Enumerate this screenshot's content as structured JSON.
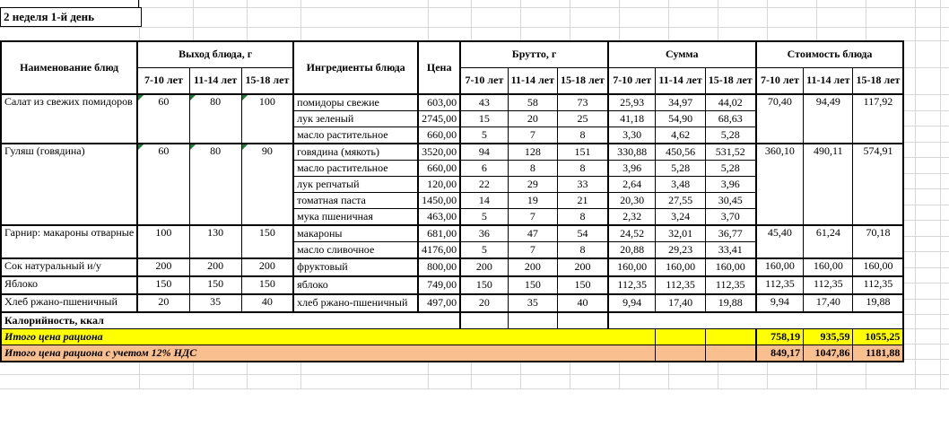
{
  "sheet": {
    "week_label": "2 неделя 1-й день"
  },
  "table": {
    "headers": {
      "dish": "Наименование блюд",
      "output": "Выход блюда, г",
      "ingredients": "Ингредиенты блюда",
      "price": "Цена",
      "brutto": "Брутто, г",
      "sum": "Сумма",
      "cost": "Стоимость блюда",
      "age_groups": [
        "7-10 лет",
        "11-14 лет",
        "15-18 лет"
      ]
    },
    "dishes": [
      {
        "name": "Салат из свежих помидоров",
        "output": [
          "60",
          "80",
          "100"
        ],
        "output_flagged": true,
        "cost": [
          "70,40",
          "94,49",
          "117,92"
        ],
        "ingredients": [
          {
            "name": "помидоры свежие",
            "price": "603,00",
            "brutto": [
              "43",
              "58",
              "73"
            ],
            "sum": [
              "25,93",
              "34,97",
              "44,02"
            ]
          },
          {
            "name": "лук зеленый",
            "price": "2745,00",
            "brutto": [
              "15",
              "20",
              "25"
            ],
            "sum": [
              "41,18",
              "54,90",
              "68,63"
            ]
          },
          {
            "name": "масло растительное",
            "price": "660,00",
            "brutto": [
              "5",
              "7",
              "8"
            ],
            "sum": [
              "3,30",
              "4,62",
              "5,28"
            ]
          }
        ]
      },
      {
        "name": "Гуляш (говядина)",
        "output": [
          "60",
          "80",
          "90"
        ],
        "output_flagged": true,
        "cost": [
          "360,10",
          "490,11",
          "574,91"
        ],
        "ingredients": [
          {
            "name": "говядина (мякоть)",
            "price": "3520,00",
            "brutto": [
              "94",
              "128",
              "151"
            ],
            "sum": [
              "330,88",
              "450,56",
              "531,52"
            ]
          },
          {
            "name": "масло растительное",
            "price": "660,00",
            "brutto": [
              "6",
              "8",
              "8"
            ],
            "sum": [
              "3,96",
              "5,28",
              "5,28"
            ]
          },
          {
            "name": "лук репчатый",
            "price": "120,00",
            "brutto": [
              "22",
              "29",
              "33"
            ],
            "sum": [
              "2,64",
              "3,48",
              "3,96"
            ]
          },
          {
            "name": "томатная паста",
            "price": "1450,00",
            "brutto": [
              "14",
              "19",
              "21"
            ],
            "sum": [
              "20,30",
              "27,55",
              "30,45"
            ]
          },
          {
            "name": "мука пшеничная",
            "price": "463,00",
            "brutto": [
              "5",
              "7",
              "8"
            ],
            "sum": [
              "2,32",
              "3,24",
              "3,70"
            ]
          }
        ]
      },
      {
        "name": "Гарнир: макароны отварные",
        "output": [
          "100",
          "130",
          "150"
        ],
        "output_flagged": false,
        "cost": [
          "45,40",
          "61,24",
          "70,18"
        ],
        "ingredients": [
          {
            "name": "макароны",
            "price": "681,00",
            "brutto": [
              "36",
              "47",
              "54"
            ],
            "sum": [
              "24,52",
              "32,01",
              "36,77"
            ]
          },
          {
            "name": "масло сливочное",
            "price": "4176,00",
            "brutto": [
              "5",
              "7",
              "8"
            ],
            "sum": [
              "20,88",
              "29,23",
              "33,41"
            ]
          }
        ]
      },
      {
        "name": "Сок натуральный и/у",
        "output": [
          "200",
          "200",
          "200"
        ],
        "output_flagged": false,
        "cost": [
          "160,00",
          "160,00",
          "160,00"
        ],
        "ingredients": [
          {
            "name": "фруктовый",
            "price": "800,00",
            "brutto": [
              "200",
              "200",
              "200"
            ],
            "sum": [
              "160,00",
              "160,00",
              "160,00"
            ]
          }
        ]
      },
      {
        "name": "Яблоко",
        "output": [
          "150",
          "150",
          "150"
        ],
        "output_flagged": false,
        "cost": [
          "112,35",
          "112,35",
          "112,35"
        ],
        "ingredients": [
          {
            "name": "яблоко",
            "price": "749,00",
            "brutto": [
              "150",
              "150",
              "150"
            ],
            "sum": [
              "112,35",
              "112,35",
              "112,35"
            ]
          }
        ]
      },
      {
        "name": "Хлеб ржано-пшеничный",
        "output": [
          "20",
          "35",
          "40"
        ],
        "output_flagged": false,
        "cost": [
          "9,94",
          "17,40",
          "19,88"
        ],
        "ingredients": [
          {
            "name": "хлеб ржано-пшеничный",
            "price": "497,00",
            "brutto": [
              "20",
              "35",
              "40"
            ],
            "sum": [
              "9,94",
              "17,40",
              "19,88"
            ]
          }
        ]
      }
    ],
    "footer": {
      "calories_label": "Калорийность, ккал",
      "total_label": "Итого цена рациона",
      "total_values": [
        "758,19",
        "935,59",
        "1055,25"
      ],
      "total_vat_label": "Итого цена рациона с учетом 12% НДС",
      "total_vat_values": [
        "849,17",
        "1047,86",
        "1181,88"
      ]
    },
    "colors": {
      "total_row_bg": "#ffff00",
      "total_vat_row_bg": "#fabf8f",
      "flag_triangle": "#1e7a33"
    }
  }
}
